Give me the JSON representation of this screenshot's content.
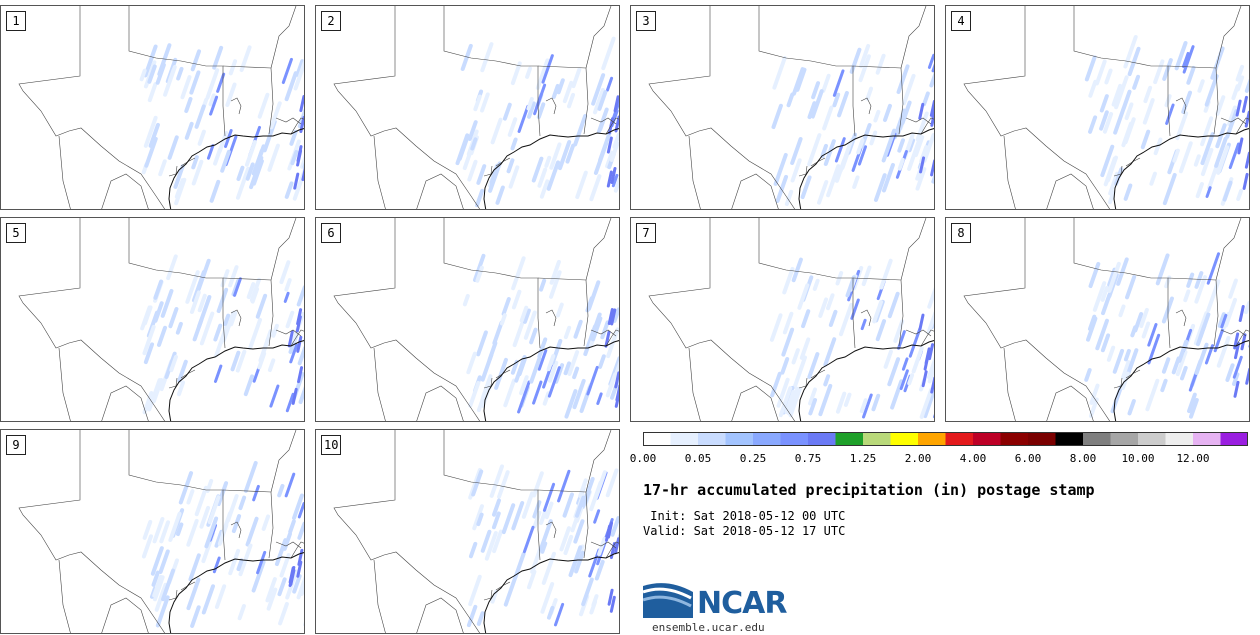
{
  "members": [
    "1",
    "2",
    "3",
    "4",
    "5",
    "6",
    "7",
    "8",
    "9",
    "10"
  ],
  "legend": {
    "colors": [
      "#ffffff",
      "#e6f0ff",
      "#c9dcff",
      "#a3c4ff",
      "#8aa9ff",
      "#7a92ff",
      "#6b7af5",
      "#1fa02a",
      "#b9d97a",
      "#ffff00",
      "#ffa500",
      "#e31a1c",
      "#bd0026",
      "#8b0000",
      "#7a0000",
      "#000000",
      "#7f7f7f",
      "#a6a6a6",
      "#cccccc",
      "#eeeeee",
      "#e6b3f2",
      "#9a1fe0"
    ],
    "tick_labels": [
      "0.00",
      "0.05",
      "0.25",
      "0.75",
      "1.25",
      "2.00",
      "4.00",
      "6.00",
      "8.00",
      "10.00",
      "12.00"
    ],
    "tick_positions": [
      0,
      2,
      4,
      6,
      8,
      10,
      12,
      14,
      16,
      18,
      20
    ]
  },
  "title": "17-hr accumulated precipitation (in) postage stamp",
  "init_line": " Init: Sat 2018-05-12 00 UTC",
  "valid_line": "Valid: Sat 2018-05-12 17 UTC",
  "logo": {
    "name": "NCAR",
    "url": "ensemble.ucar.edu"
  }
}
